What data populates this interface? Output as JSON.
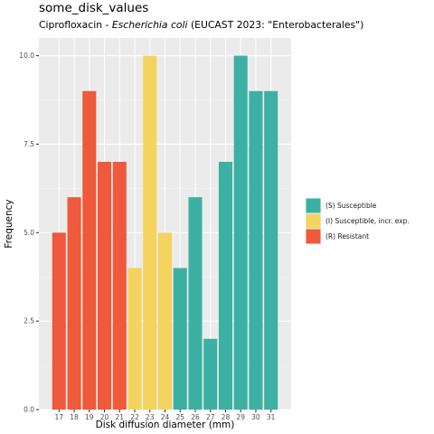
{
  "title": "some_disk_values",
  "subtitle": {
    "prefix": "Ciprofloxacin - ",
    "organism": "Escherichia coli",
    "suffix": " (EUCAST 2023: \"Enterobacterales\")"
  },
  "chart_data": {
    "type": "bar",
    "xlabel": "Disk diffusion diameter (mm)",
    "ylabel": "Frequency",
    "ylim": [
      0,
      10.5
    ],
    "y_ticks": [
      "0.0",
      "2.5",
      "5.0",
      "7.5",
      "10.0"
    ],
    "categories": [
      "17",
      "18",
      "19",
      "20",
      "21",
      "22",
      "23",
      "24",
      "25",
      "26",
      "27",
      "28",
      "29",
      "30",
      "31"
    ],
    "values": [
      5,
      6,
      9,
      7,
      7,
      4,
      10,
      5,
      4,
      6,
      2,
      7,
      10,
      9,
      9
    ],
    "interpretation": [
      "R",
      "R",
      "R",
      "R",
      "R",
      "I",
      "I",
      "I",
      "S",
      "S",
      "S",
      "S",
      "S",
      "S",
      "S"
    ],
    "grid": true,
    "legend_position": "right",
    "legend": [
      {
        "key": "S",
        "label": "(S) Susceptible",
        "color": "#3CB0A2"
      },
      {
        "key": "I",
        "label": "(I) Susceptible, incr. exp.",
        "color": "#F4D35E"
      },
      {
        "key": "R",
        "label": "(R) Resistant",
        "color": "#EE5A3B"
      }
    ]
  }
}
